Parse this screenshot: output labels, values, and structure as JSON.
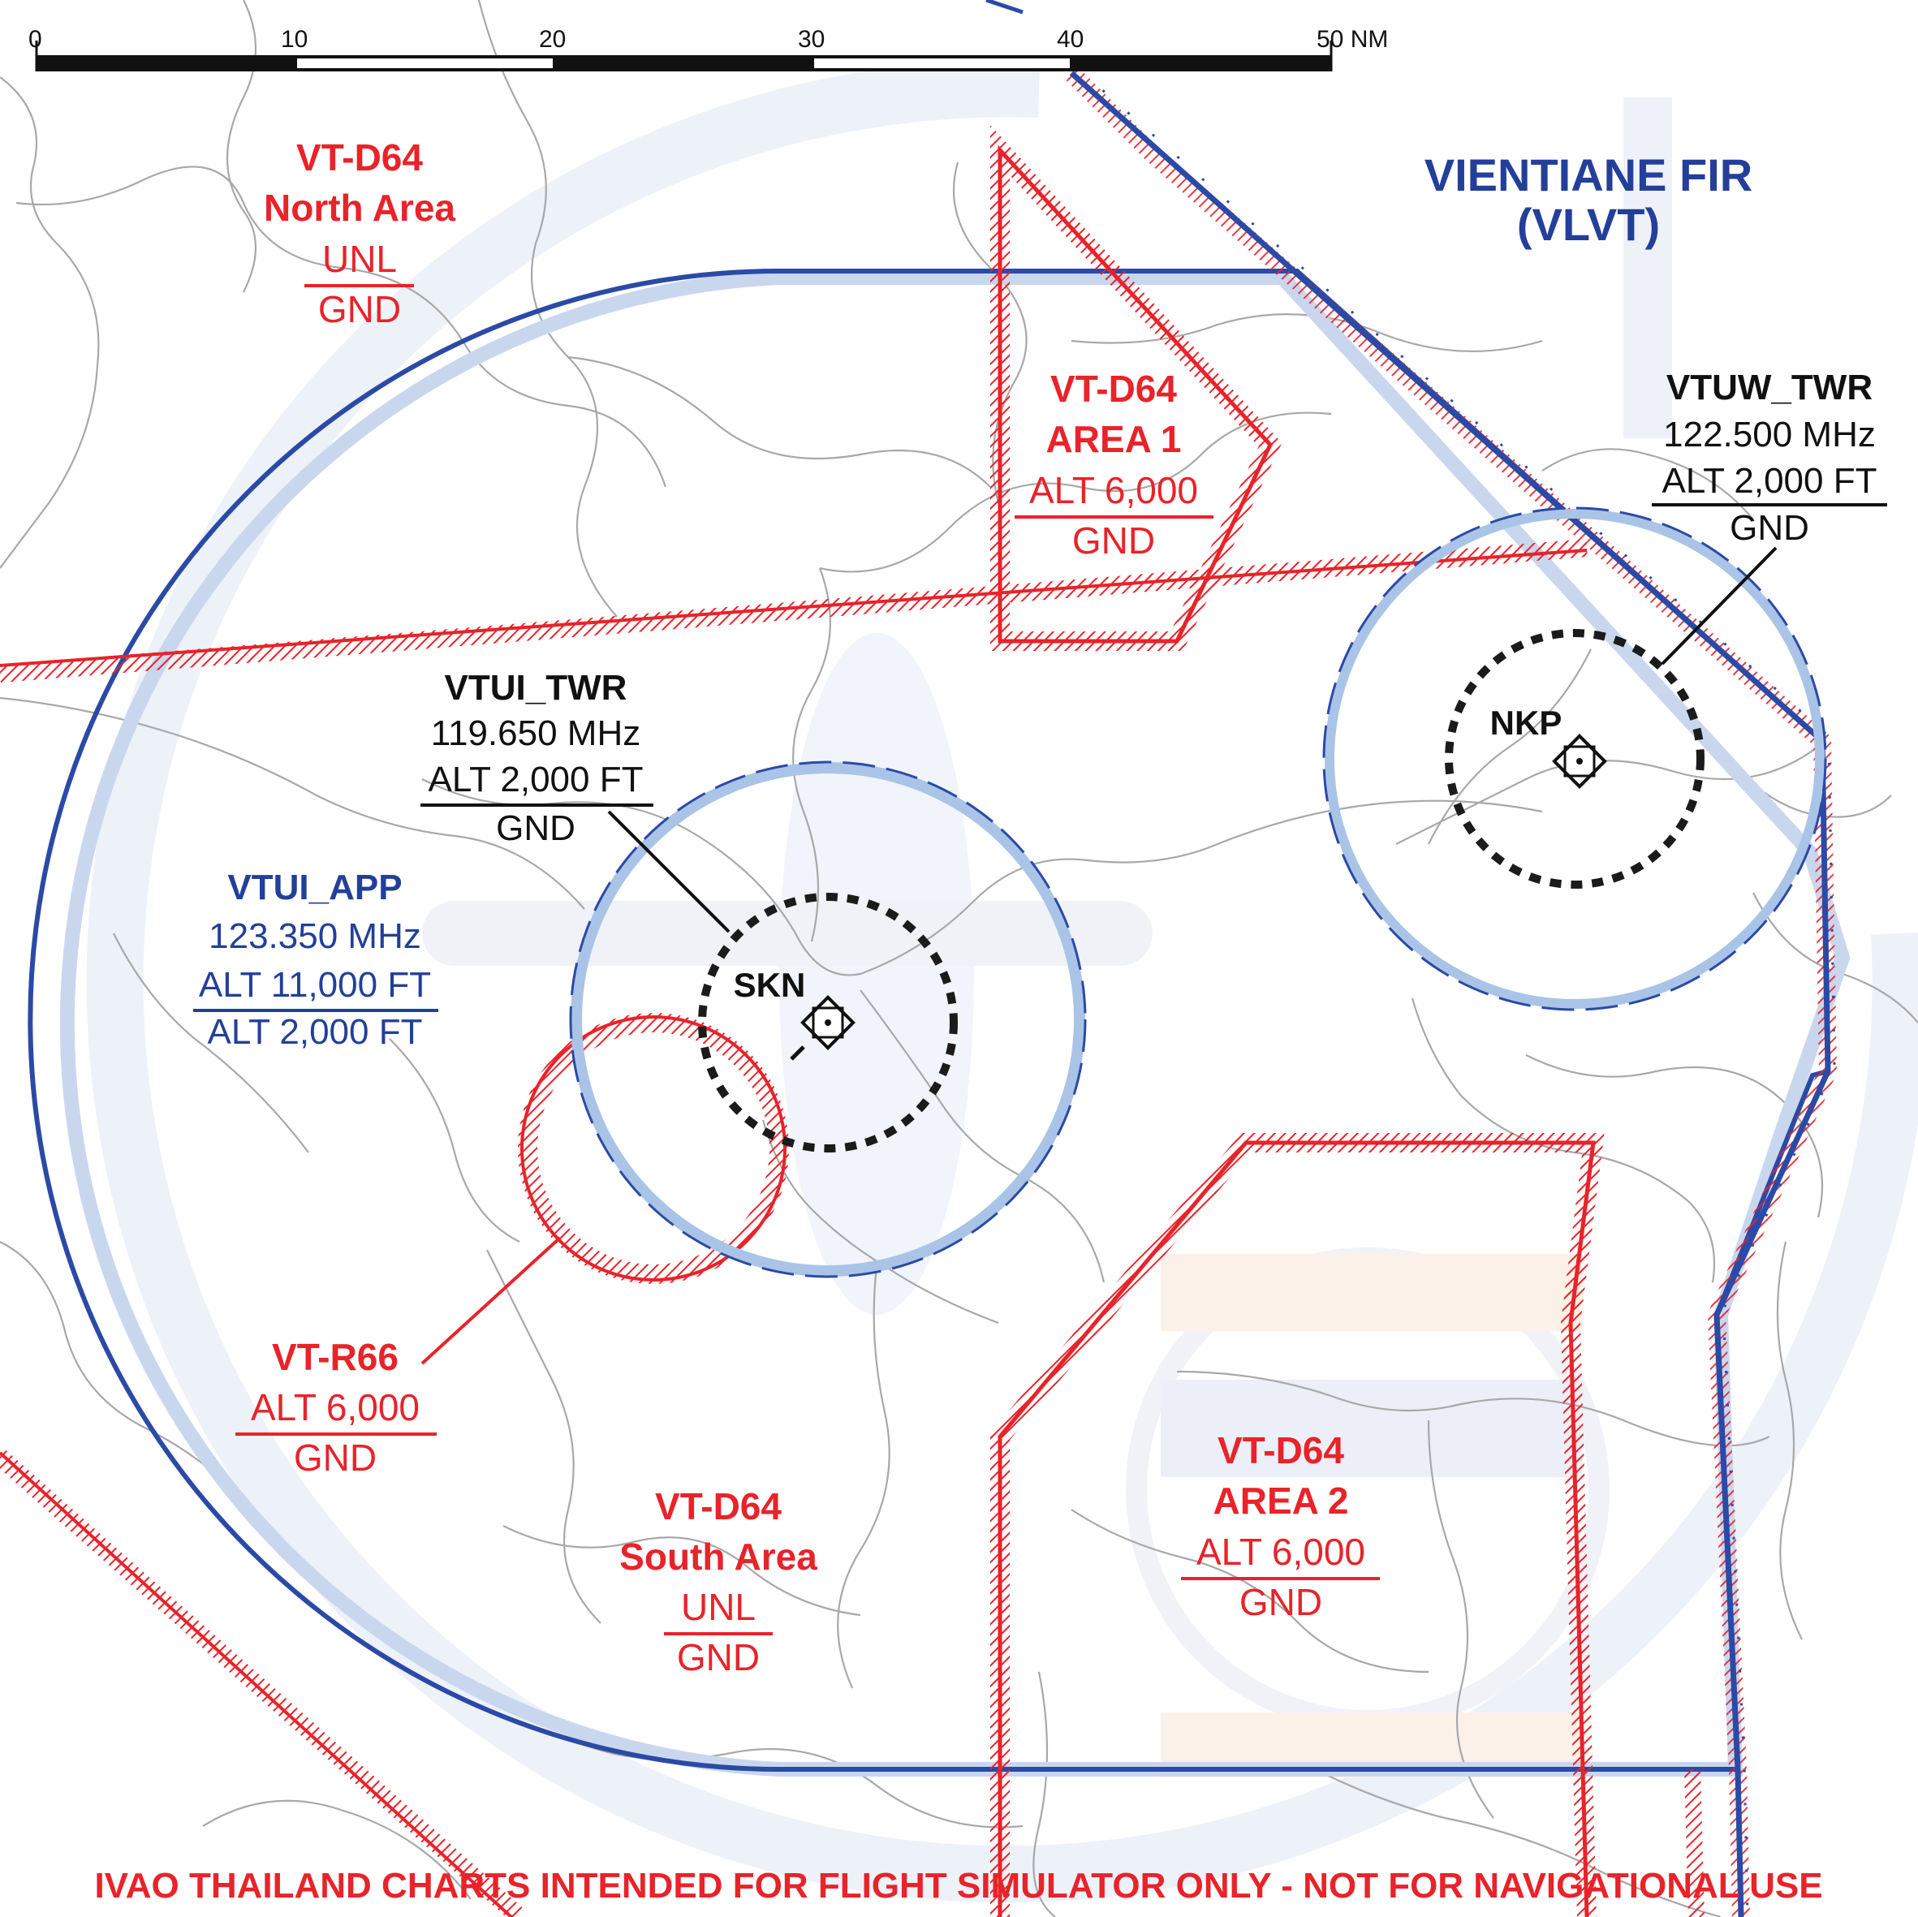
{
  "scale_bar": {
    "ticks": [
      "0",
      "10",
      "20",
      "30",
      "40",
      "50 NM"
    ]
  },
  "fir": {
    "name": "VIENTIANE FIR",
    "code": "(VLVT)"
  },
  "areas": {
    "d64_north": {
      "name": "VT-D64",
      "sub": "North Area",
      "upper": "UNL",
      "lower": "GND"
    },
    "d64_area1": {
      "name": "VT-D64",
      "sub": "AREA 1",
      "upper": "ALT 6,000",
      "lower": "GND"
    },
    "d64_south": {
      "name": "VT-D64",
      "sub": "South Area",
      "upper": "UNL",
      "lower": "GND"
    },
    "d64_area2": {
      "name": "VT-D64",
      "sub": "AREA 2",
      "upper": "ALT 6,000",
      "lower": "GND"
    },
    "r66": {
      "name": "VT-R66",
      "upper": "ALT 6,000",
      "lower": "GND"
    }
  },
  "stations": {
    "vtui_app": {
      "name": "VTUI_APP",
      "freq": "123.350 MHz",
      "upper": "ALT 11,000 FT",
      "lower": "ALT 2,000 FT"
    },
    "vtui_twr": {
      "name": "VTUI_TWR",
      "freq": "119.650 MHz",
      "upper": "ALT 2,000 FT",
      "lower": "GND"
    },
    "vtuw_twr": {
      "name": "VTUW_TWR",
      "freq": "122.500 MHz",
      "upper": "ALT 2,000 FT",
      "lower": "GND"
    }
  },
  "airports": {
    "skn": "SKN",
    "nkp": "NKP"
  },
  "disclaimer": "IVAO THAILAND CHARTS INTENDED FOR FLIGHT SIMULATOR ONLY - NOT FOR NAVIGATIONAL USE",
  "colors": {
    "restricted_red": "#e8232a",
    "airspace_blue": "#233f9a",
    "ctr_light_blue": "#a9c4e6",
    "road_grey": "#a8a8a8"
  }
}
